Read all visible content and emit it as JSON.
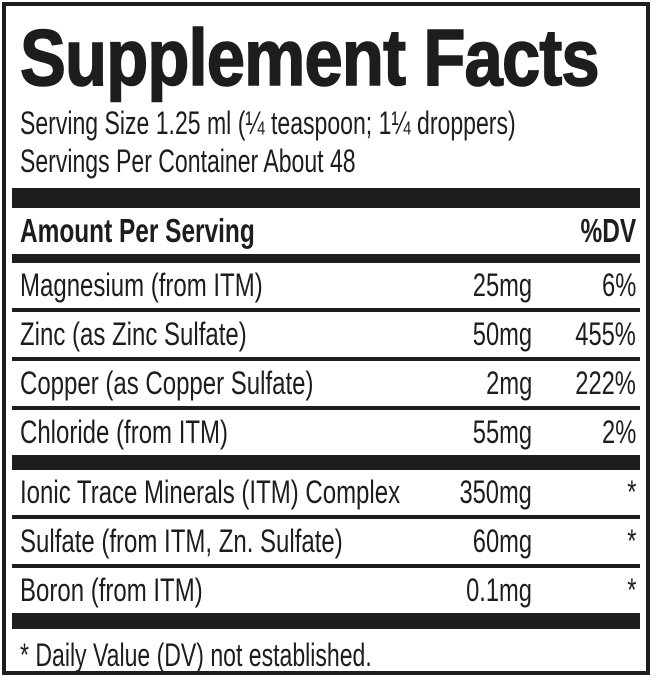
{
  "colors": {
    "ink": "#1d1d1b",
    "background": "#ffffff"
  },
  "label": {
    "title": "Supplement Facts",
    "serving_size": "Serving Size 1.25 ml (¼ teaspoon; 1¼ droppers)",
    "servings_per_container": "Servings Per Container About 48",
    "columns": {
      "amount_header": "Amount Per Serving",
      "dv_header": "%DV"
    },
    "nutrients": [
      {
        "name": "Magnesium (from ITM)",
        "amount": "25mg",
        "dv": "6%"
      },
      {
        "name": "Zinc (as Zinc Sulfate)",
        "amount": "50mg",
        "dv": "455%"
      },
      {
        "name": "Copper (as Copper Sulfate)",
        "amount": "2mg",
        "dv": "222%"
      },
      {
        "name": "Chloride (from ITM)",
        "amount": "55mg",
        "dv": "2%"
      },
      {
        "name": "Ionic Trace Minerals (ITM) Complex",
        "amount": "350mg",
        "dv": "*"
      },
      {
        "name": "Sulfate (from ITM, Zn. Sulfate)",
        "amount": "60mg",
        "dv": "*"
      },
      {
        "name": "Boron (from ITM)",
        "amount": "0.1mg",
        "dv": "*"
      }
    ],
    "footnote": "* Daily Value (DV) not established."
  }
}
